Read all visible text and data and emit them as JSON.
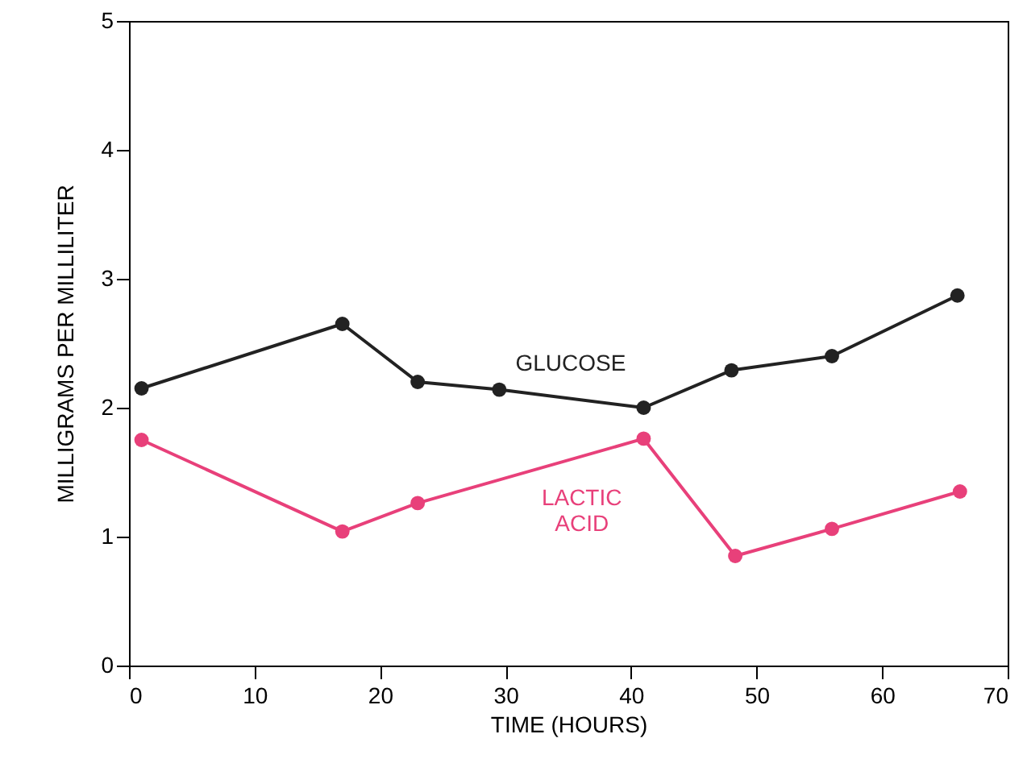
{
  "chart_data": {
    "type": "line",
    "xlabel": "TIME (HOURS)",
    "ylabel": "MILLIGRAMS PER MILLILITER",
    "xlim": [
      0,
      70
    ],
    "xticks": [
      0,
      10,
      20,
      30,
      40,
      50,
      60,
      70
    ],
    "ylim": [
      0,
      5
    ],
    "yticks": [
      0,
      1,
      2,
      3,
      4,
      5
    ],
    "grid": false,
    "marker": "circle",
    "line_style": "solid",
    "series": [
      {
        "name": "GLUCOSE",
        "color": "#222222",
        "x": [
          1,
          17,
          23,
          29.5,
          41,
          48,
          56,
          66
        ],
        "values": [
          2.15,
          2.65,
          2.2,
          2.14,
          2.0,
          2.29,
          2.4,
          2.87
        ]
      },
      {
        "name": "LACTIC ACID",
        "color": "#e8407a",
        "x": [
          1,
          17,
          23,
          41,
          48.3,
          56,
          66.2
        ],
        "values": [
          1.75,
          1.04,
          1.26,
          1.76,
          0.85,
          1.06,
          1.35
        ]
      }
    ]
  }
}
